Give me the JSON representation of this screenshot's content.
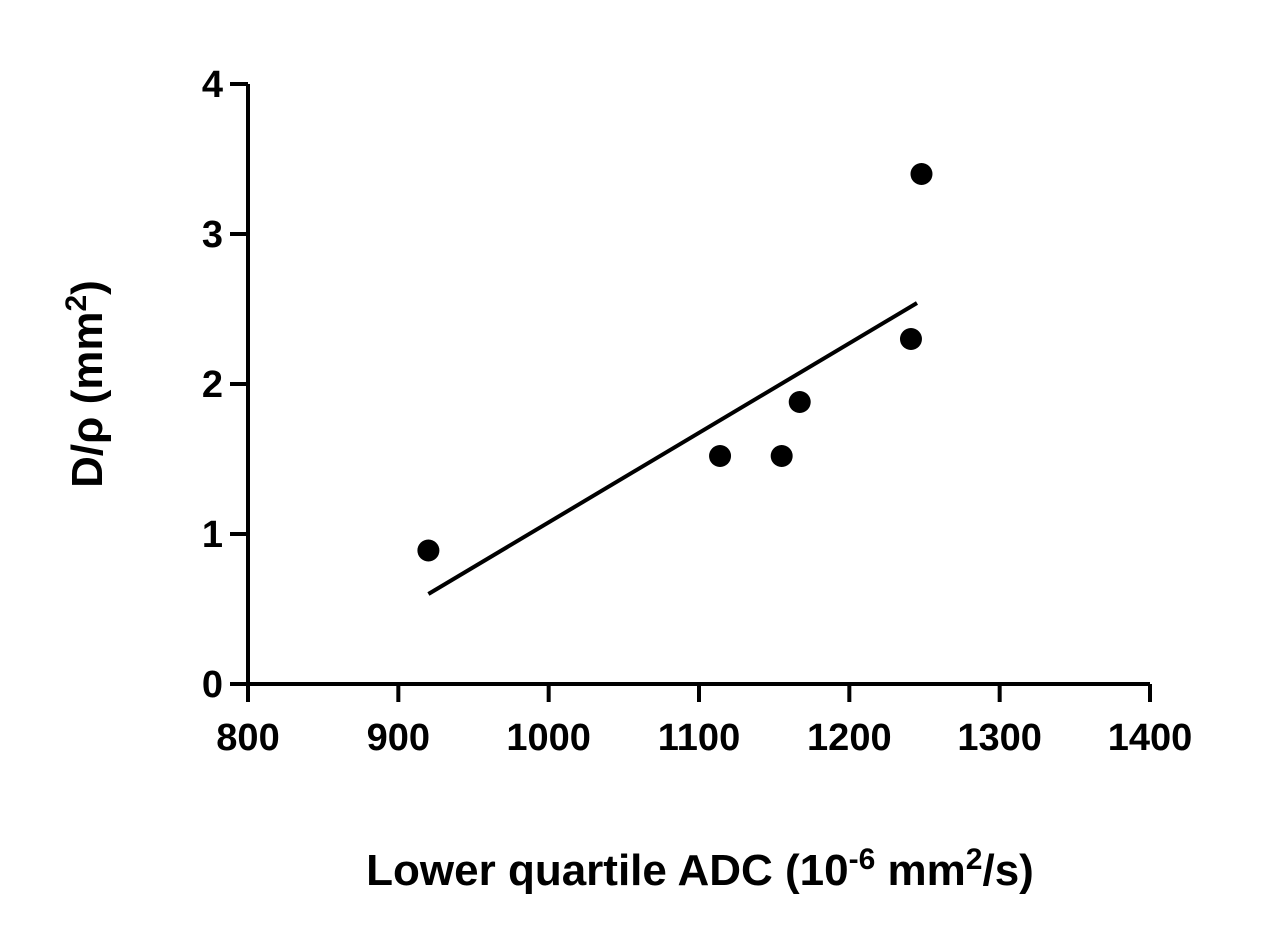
{
  "chart_data": {
    "type": "scatter",
    "title": "",
    "xlabel": {
      "base": "Lower quartile ADC  (10",
      "exp1": "-6",
      "mid": " mm",
      "exp2": "2",
      "end": "/s)"
    },
    "ylabel": {
      "base": "D/ρ (mm",
      "exp": "2",
      "end": ")"
    },
    "xlim": [
      800,
      1400
    ],
    "ylim": [
      0,
      4
    ],
    "xticks": [
      800,
      900,
      1000,
      1100,
      1200,
      1300,
      1400
    ],
    "yticks": [
      0,
      1,
      2,
      3,
      4
    ],
    "grid": false,
    "legend": "none",
    "series": [
      {
        "points": [
          {
            "x": 920,
            "y": 0.89
          },
          {
            "x": 1114,
            "y": 1.52
          },
          {
            "x": 1155,
            "y": 1.52
          },
          {
            "x": 1167,
            "y": 1.88
          },
          {
            "x": 1241,
            "y": 2.3
          },
          {
            "x": 1248,
            "y": 3.4
          }
        ],
        "color": "#000000"
      }
    ],
    "fit_line": {
      "x": [
        920,
        1245
      ],
      "y": [
        0.6,
        2.54
      ],
      "color": "#000000"
    }
  }
}
